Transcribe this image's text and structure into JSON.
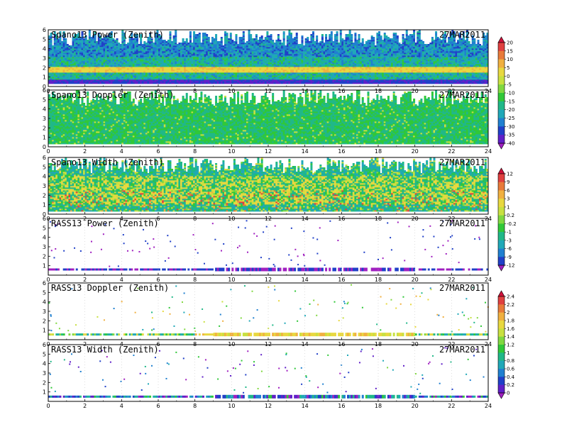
{
  "chart_data": [
    {
      "type": "heatmap",
      "title": "Spano13 Power (Zenith)",
      "date": "27MAR2011",
      "x_ticks": [
        "0",
        "2",
        "4",
        "6",
        "8",
        "10",
        "12",
        "14",
        "16",
        "18",
        "20",
        "22",
        "24"
      ],
      "y_ticks": [
        "0",
        "1",
        "2",
        "3",
        "4",
        "5",
        "6"
      ],
      "xlim": [
        0,
        24
      ],
      "ylim": [
        0,
        6
      ],
      "colorbar": "power",
      "pattern": "dense",
      "band_height": 1.8,
      "base_level": -20
    },
    {
      "type": "heatmap",
      "title": "Spano13 Doppler (Zenith)",
      "date": "27MAR2011",
      "x_ticks": [
        "0",
        "2",
        "4",
        "6",
        "8",
        "10",
        "12",
        "14",
        "16",
        "18",
        "20",
        "22",
        "24"
      ],
      "y_ticks": [
        "0",
        "1",
        "2",
        "3",
        "4",
        "5",
        "6"
      ],
      "xlim": [
        0,
        24
      ],
      "ylim": [
        0,
        6
      ],
      "colorbar": "power",
      "pattern": "dense",
      "base_level": -15
    },
    {
      "type": "heatmap",
      "title": "Spano13 Width (Zenith)",
      "date": "27MAR2011",
      "x_ticks": [
        "0",
        "2",
        "4",
        "6",
        "8",
        "10",
        "12",
        "14",
        "16",
        "18",
        "20",
        "22",
        "24"
      ],
      "y_ticks": [
        "0",
        "1",
        "2",
        "3",
        "4",
        "5",
        "6"
      ],
      "xlim": [
        0,
        24
      ],
      "ylim": [
        0,
        6
      ],
      "colorbar": "width",
      "pattern": "dense",
      "base_level": 0
    },
    {
      "type": "heatmap",
      "title": "RASS13 Power (Zenith)",
      "date": "27MAR2011",
      "x_ticks": [
        "0",
        "2",
        "4",
        "6",
        "8",
        "10",
        "12",
        "14",
        "16",
        "18",
        "20",
        "22",
        "24"
      ],
      "y_ticks": [
        "1",
        "2",
        "3",
        "4",
        "5",
        "6"
      ],
      "xlim": [
        0,
        24
      ],
      "ylim": [
        0,
        6
      ],
      "colorbar": "width",
      "pattern": "sparse",
      "band_height": 0.6,
      "base_level": -12
    },
    {
      "type": "heatmap",
      "title": "RASS13 Doppler (Zenith)",
      "date": "27MAR2011",
      "x_ticks": [
        "0",
        "2",
        "4",
        "6",
        "8",
        "10",
        "12",
        "14",
        "16",
        "18",
        "20",
        "22",
        "24"
      ],
      "y_ticks": [
        "1",
        "2",
        "3",
        "4",
        "5",
        "6"
      ],
      "xlim": [
        0,
        24
      ],
      "ylim": [
        0,
        6
      ],
      "colorbar": "rass",
      "pattern": "sparse",
      "band_height": 0.55,
      "base_level": 1.2
    },
    {
      "type": "heatmap",
      "title": "RASS13 Width (Zenith)",
      "date": "27MAR2011",
      "x_ticks": [
        "0",
        "2",
        "4",
        "6",
        "8",
        "10",
        "12",
        "14",
        "16",
        "18",
        "20",
        "22",
        "24"
      ],
      "y_ticks": [
        "1",
        "2",
        "3",
        "4",
        "5",
        "6"
      ],
      "xlim": [
        0,
        24
      ],
      "ylim": [
        0,
        6
      ],
      "colorbar": "rass",
      "pattern": "sparse",
      "band_height": 0.5,
      "base_level": 0.5
    }
  ],
  "colorbars": {
    "power": {
      "labels": [
        "20",
        "15",
        "10",
        "5",
        "0",
        "-5",
        "-10",
        "-15",
        "-20",
        "-25",
        "-30",
        "-35",
        "-40"
      ],
      "colors": [
        "#d0103a",
        "#e04040",
        "#e87a3a",
        "#f0b040",
        "#e8d840",
        "#c8e040",
        "#80d840",
        "#30c838",
        "#20b888",
        "#20a8b8",
        "#2080d0",
        "#2040c8",
        "#6020c8",
        "#a020c0"
      ]
    },
    "width": {
      "labels": [
        "12",
        "9",
        "6",
        "3",
        "1",
        "0.2",
        "-0.2",
        "-1",
        "-3",
        "-6",
        "-9",
        "-12"
      ],
      "colors": [
        "#d0103a",
        "#e04040",
        "#e87a3a",
        "#f0b040",
        "#e8d840",
        "#c8e040",
        "#80d840",
        "#30c838",
        "#20b888",
        "#20a8b8",
        "#2080d0",
        "#2040c8",
        "#a020c0"
      ]
    },
    "rass": {
      "labels": [
        "2.4",
        "2.2",
        "2",
        "1.8",
        "1.6",
        "1.4",
        "1.2",
        "1",
        "0.8",
        "0.6",
        "0.4",
        "0.2",
        "0"
      ],
      "colors": [
        "#d0103a",
        "#e04040",
        "#e87a3a",
        "#f0b040",
        "#e8d840",
        "#c8e040",
        "#80d840",
        "#30c838",
        "#20b888",
        "#20a8b8",
        "#2080d0",
        "#2040c8",
        "#6020c8",
        "#a020c0"
      ]
    }
  }
}
